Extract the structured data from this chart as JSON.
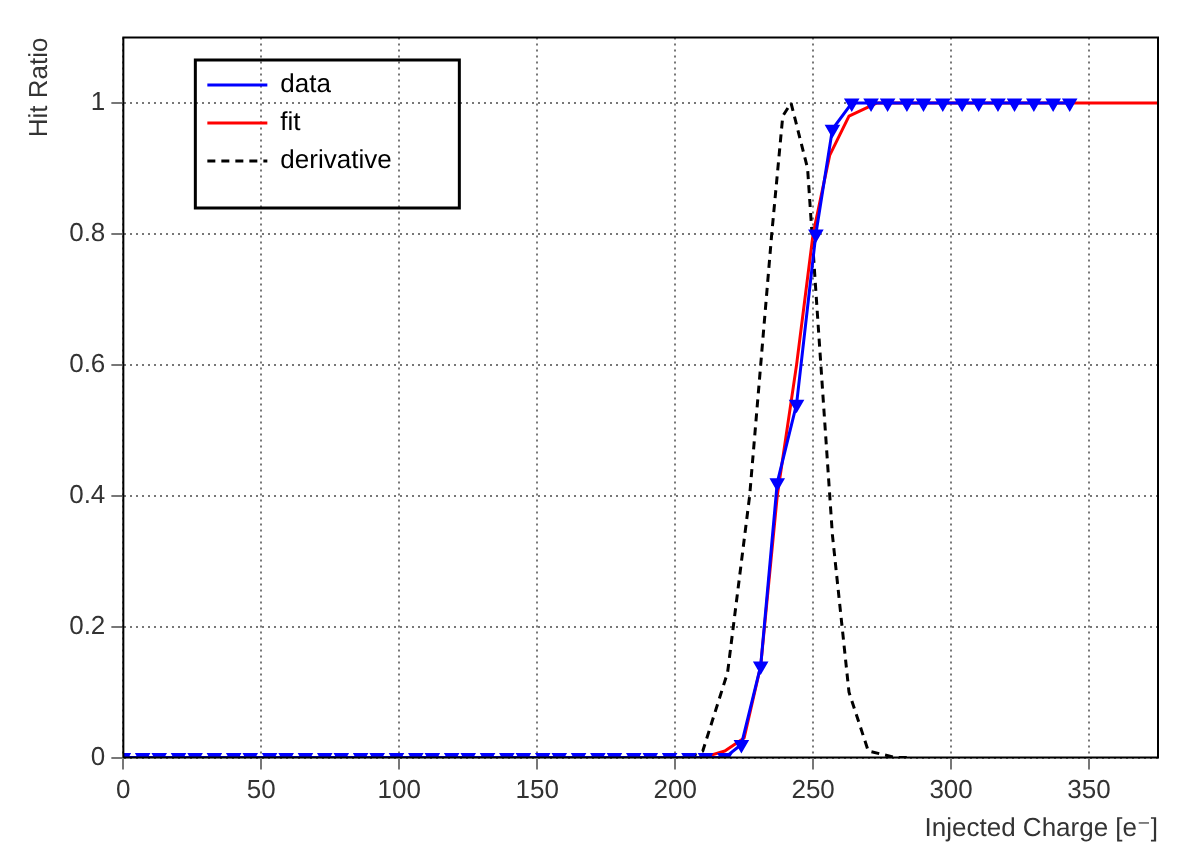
{
  "chart_data": {
    "type": "line",
    "xlabel": "Injected Charge [e⁻]",
    "ylabel": "Hit Ratio",
    "xlim": [
      0,
      375
    ],
    "ylim": [
      0,
      1.1
    ],
    "xticks": [
      0,
      50,
      100,
      150,
      200,
      250,
      300,
      350
    ],
    "yticks": [
      0,
      0.2,
      0.4,
      0.6,
      0.8,
      1
    ],
    "grid": true,
    "legend": "top left",
    "series": [
      {
        "name": "data",
        "color": "#0000ff",
        "marker": "triangle",
        "line_style": "solid",
        "x": [
          0,
          7,
          13,
          20,
          26,
          33,
          40,
          46,
          53,
          59,
          66,
          73,
          79,
          86,
          92,
          99,
          106,
          112,
          119,
          125,
          132,
          139,
          145,
          152,
          158,
          165,
          172,
          178,
          185,
          191,
          198,
          205,
          211,
          218,
          224,
          231,
          237,
          244,
          251,
          257,
          264,
          271,
          277,
          284,
          290,
          297,
          304,
          310,
          317,
          323,
          330,
          337,
          343
        ],
        "values": [
          0,
          0,
          0,
          0,
          0,
          0,
          0,
          0,
          0,
          0,
          0,
          0,
          0,
          0,
          0,
          0,
          0,
          0,
          0,
          0,
          0,
          0,
          0,
          0,
          0,
          0,
          0,
          0,
          0,
          0,
          0,
          0,
          0,
          0,
          0.02,
          0.14,
          0.42,
          0.54,
          0.8,
          0.96,
          1,
          1,
          1,
          1,
          1,
          1,
          1,
          1,
          1,
          1,
          1,
          1,
          1
        ]
      },
      {
        "name": "fit",
        "color": "#ff0000",
        "marker": "none",
        "line_style": "solid",
        "x": [
          200,
          210,
          218,
          225,
          231,
          237,
          244,
          250,
          256,
          263,
          273,
          300,
          375
        ],
        "values": [
          0,
          0,
          0.01,
          0.03,
          0.14,
          0.4,
          0.6,
          0.8,
          0.92,
          0.98,
          1,
          1,
          1
        ]
      },
      {
        "name": "derivative",
        "color": "#000000",
        "marker": "none",
        "line_style": "dashed",
        "x": [
          195,
          205,
          210,
          219,
          227,
          235,
          239,
          242,
          248,
          252,
          257,
          263,
          270,
          280,
          285
        ],
        "values": [
          0,
          0,
          0.01,
          0.13,
          0.4,
          0.8,
          0.98,
          1,
          0.9,
          0.65,
          0.34,
          0.1,
          0.01,
          0,
          0
        ]
      }
    ]
  }
}
